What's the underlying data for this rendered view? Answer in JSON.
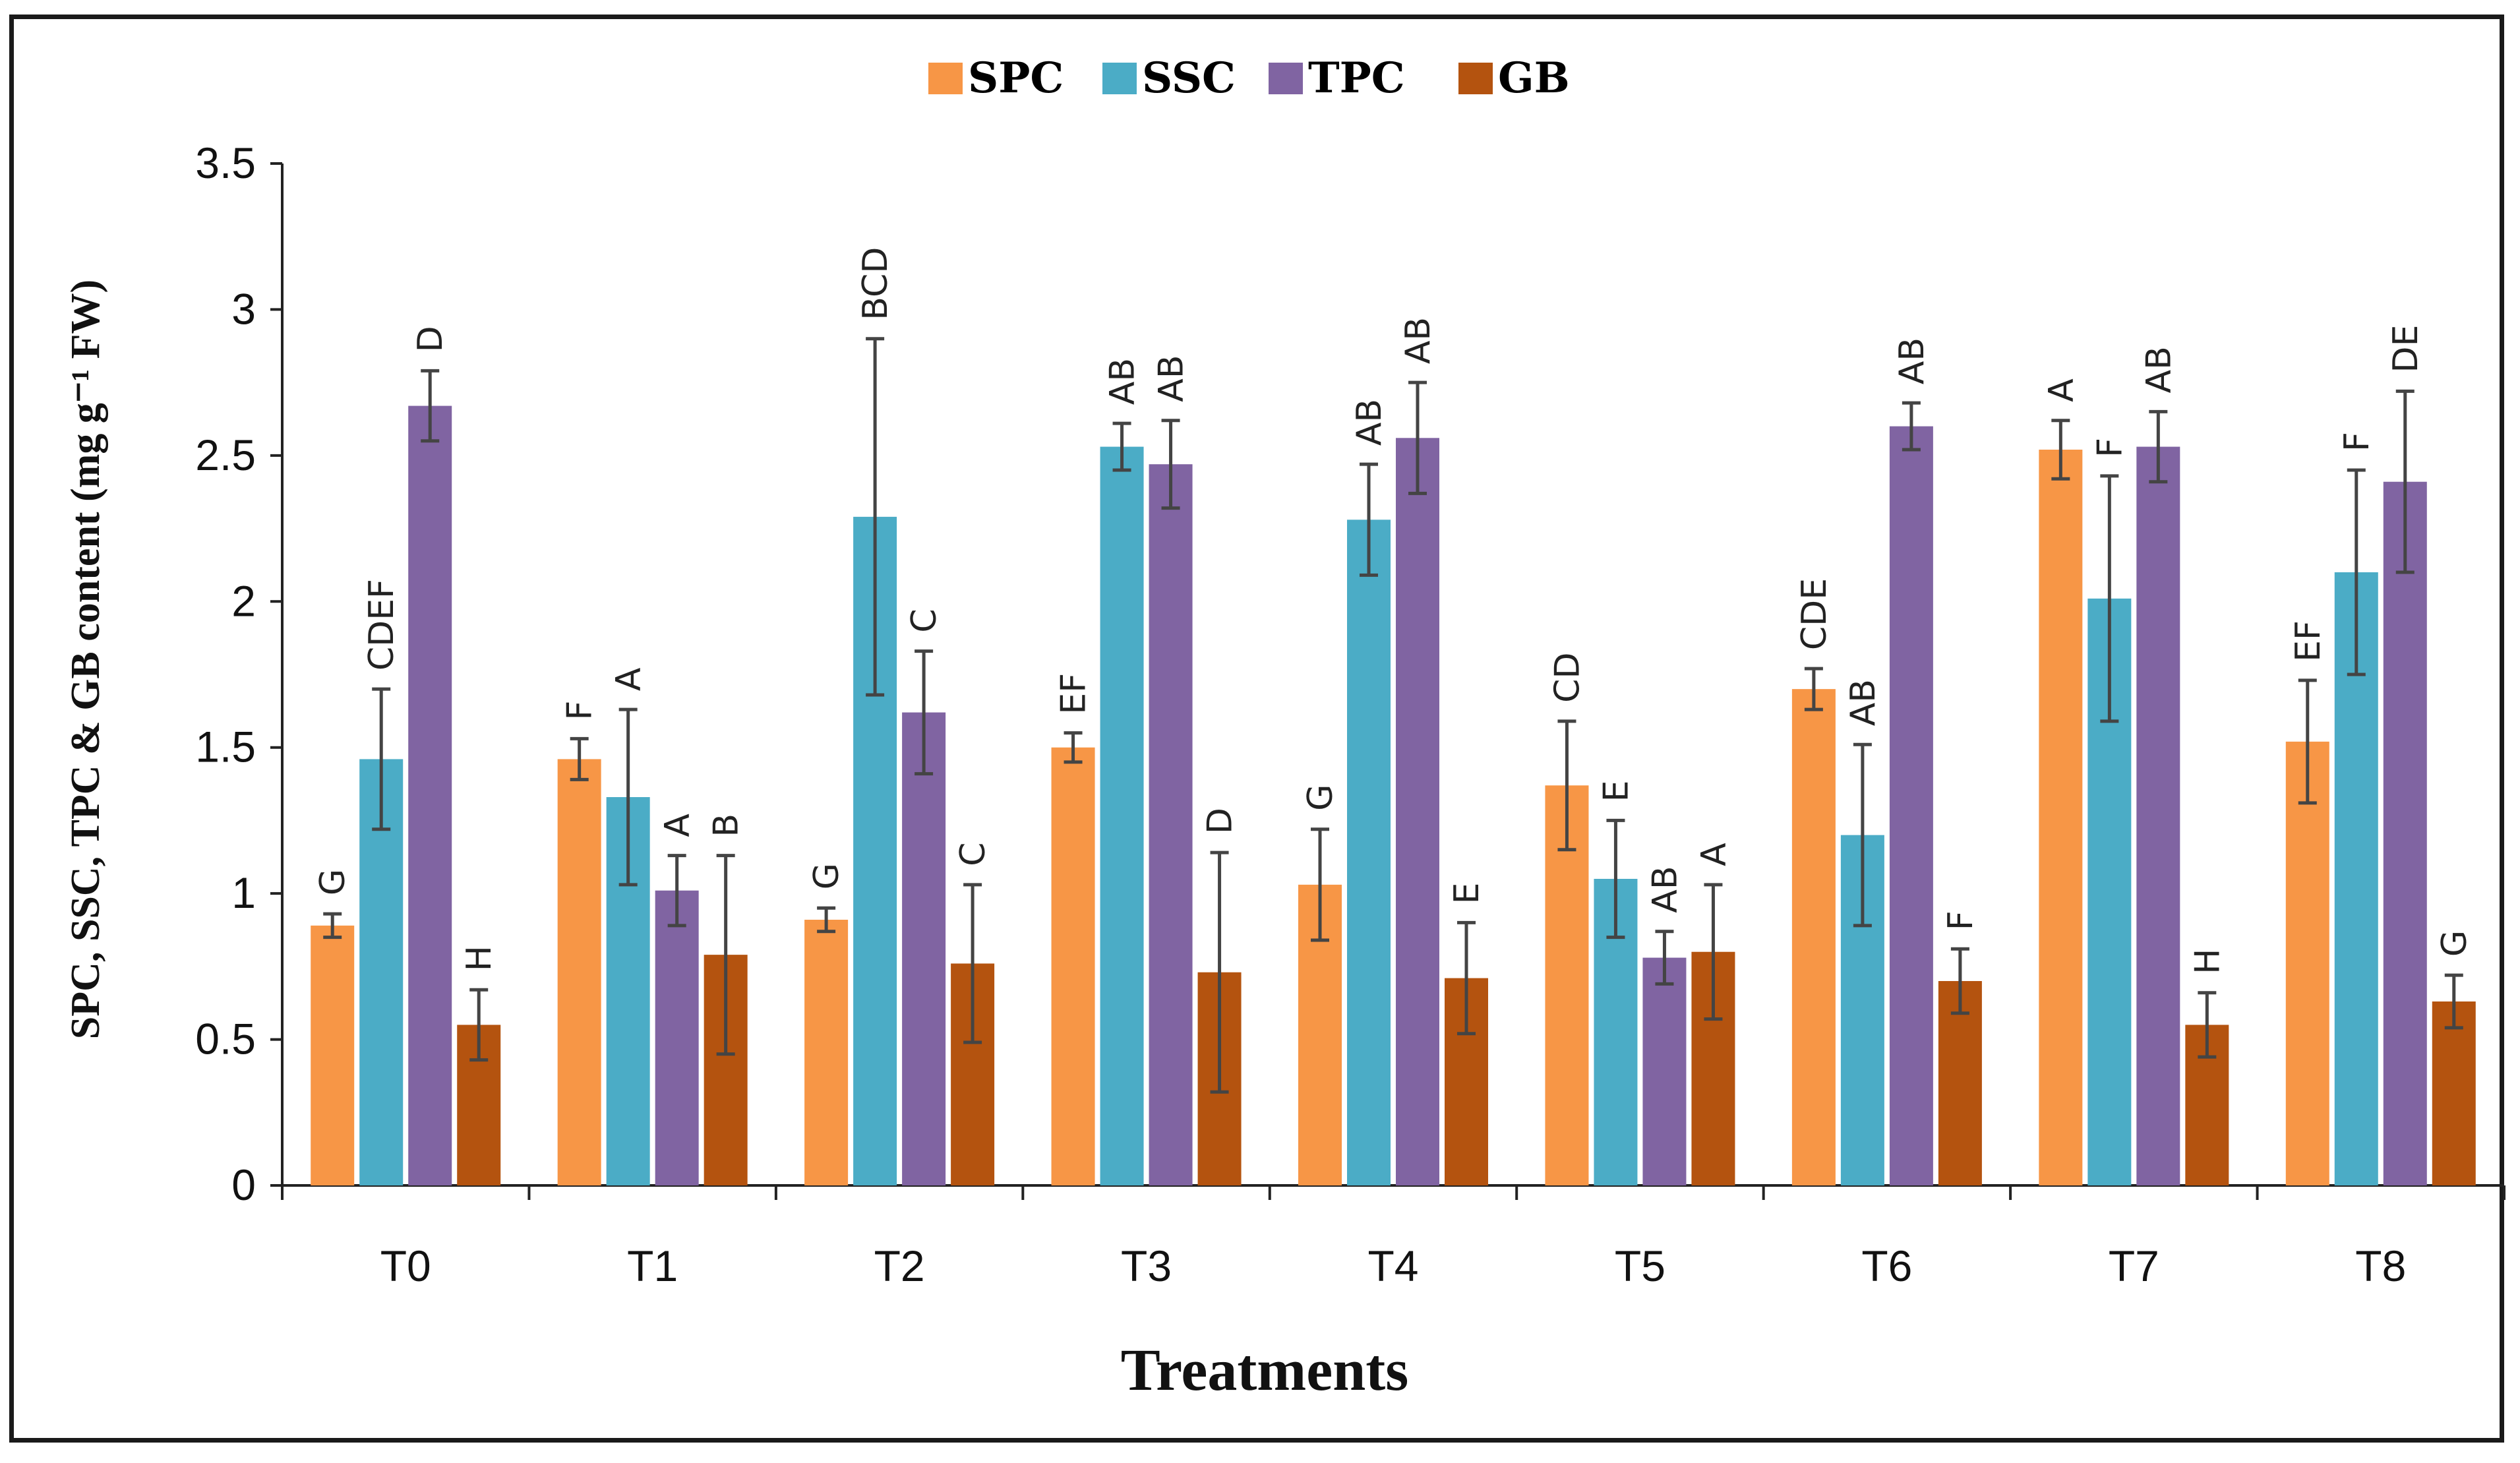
{
  "chart_data": {
    "type": "bar",
    "title": "",
    "xlabel": "Treatments",
    "ylabel": "SPC, SSC, TPC & GB content (mg g⁻¹ FW)",
    "ylim": [
      0,
      3.5
    ],
    "yticks": [
      "0",
      "0.5",
      "1",
      "1.5",
      "2",
      "2.5",
      "3",
      "3.5"
    ],
    "legend_position": "top-center",
    "categories": [
      "T0",
      "T1",
      "T2",
      "T3",
      "T4",
      "T5",
      "T6",
      "T7",
      "T8"
    ],
    "series": [
      {
        "name": "SPC",
        "color": "#F79646",
        "values": [
          0.89,
          1.46,
          0.91,
          1.5,
          1.03,
          1.37,
          1.7,
          2.52,
          1.52
        ],
        "errors": [
          0.04,
          0.07,
          0.04,
          0.05,
          0.19,
          0.22,
          0.07,
          0.1,
          0.21
        ],
        "letters": [
          "G",
          "F",
          "G",
          "EF",
          "G",
          "CD",
          "CDE",
          "A",
          "EF"
        ]
      },
      {
        "name": "SSC",
        "color": "#4BACC6",
        "values": [
          1.46,
          1.33,
          2.29,
          2.53,
          2.28,
          1.05,
          1.2,
          2.01,
          2.1
        ],
        "errors": [
          0.24,
          0.3,
          0.61,
          0.08,
          0.19,
          0.2,
          0.31,
          0.42,
          0.35
        ],
        "letters": [
          "CDEF",
          "A",
          "BCD",
          "AB",
          "AB",
          "E",
          "AB",
          "F",
          "F"
        ]
      },
      {
        "name": "TPC",
        "color": "#8064A2",
        "values": [
          2.67,
          1.01,
          1.62,
          2.47,
          2.56,
          0.78,
          2.6,
          2.53,
          2.41
        ],
        "errors": [
          0.12,
          0.12,
          0.21,
          0.15,
          0.19,
          0.09,
          0.08,
          0.12,
          0.31
        ],
        "letters": [
          "D",
          "A",
          "C",
          "AB",
          "AB",
          "AB",
          "AB",
          "AB",
          "DE"
        ]
      },
      {
        "name": "GB",
        "color": "#B4530F",
        "values": [
          0.55,
          0.79,
          0.76,
          0.73,
          0.71,
          0.8,
          0.7,
          0.55,
          0.63
        ],
        "errors": [
          0.12,
          0.34,
          0.27,
          0.41,
          0.19,
          0.23,
          0.11,
          0.11,
          0.09
        ],
        "letters": [
          "H",
          "B",
          "C",
          "D",
          "E",
          "A",
          "F",
          "H",
          "G"
        ]
      }
    ]
  }
}
